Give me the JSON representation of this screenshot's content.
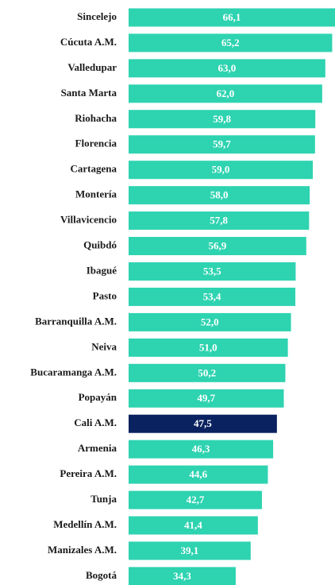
{
  "chart_data": {
    "type": "barh",
    "categories": [
      "Sincelejo",
      "Cúcuta A.M.",
      "Valledupar",
      "Santa Marta",
      "Riohacha",
      "Florencia",
      "Cartagena",
      "Montería",
      "Villavicencio",
      "Quibdó",
      "Ibagué",
      "Pasto",
      "Barranquilla A.M.",
      "Neiva",
      "Bucaramanga A.M.",
      "Popayán",
      "Cali A.M.",
      "Armenia",
      "Pereira A.M.",
      "Tunja",
      "Medellín A.M.",
      "Manizales A.M.",
      "Bogotá"
    ],
    "values": [
      66.1,
      65.2,
      63.0,
      62.0,
      59.8,
      59.7,
      59.0,
      58.0,
      57.8,
      56.9,
      53.5,
      53.4,
      52.0,
      51.0,
      50.2,
      49.7,
      47.5,
      46.3,
      44.6,
      42.7,
      41.4,
      39.1,
      34.3
    ],
    "value_labels": [
      "66,1",
      "65,2",
      "63,0",
      "62,0",
      "59,8",
      "59,7",
      "59,0",
      "58,0",
      "57,8",
      "56,9",
      "53,5",
      "53,4",
      "52,0",
      "51,0",
      "50,2",
      "49,7",
      "47,5",
      "46,3",
      "44,6",
      "42,7",
      "41,4",
      "39,1",
      "34,3"
    ],
    "colors": [
      "#2ed3b0",
      "#2ed3b0",
      "#2ed3b0",
      "#2ed3b0",
      "#2ed3b0",
      "#2ed3b0",
      "#2ed3b0",
      "#2ed3b0",
      "#2ed3b0",
      "#2ed3b0",
      "#2ed3b0",
      "#2ed3b0",
      "#2ed3b0",
      "#2ed3b0",
      "#2ed3b0",
      "#2ed3b0",
      "#0b2260",
      "#2ed3b0",
      "#2ed3b0",
      "#2ed3b0",
      "#2ed3b0",
      "#2ed3b0",
      "#2ed3b0"
    ]
  }
}
